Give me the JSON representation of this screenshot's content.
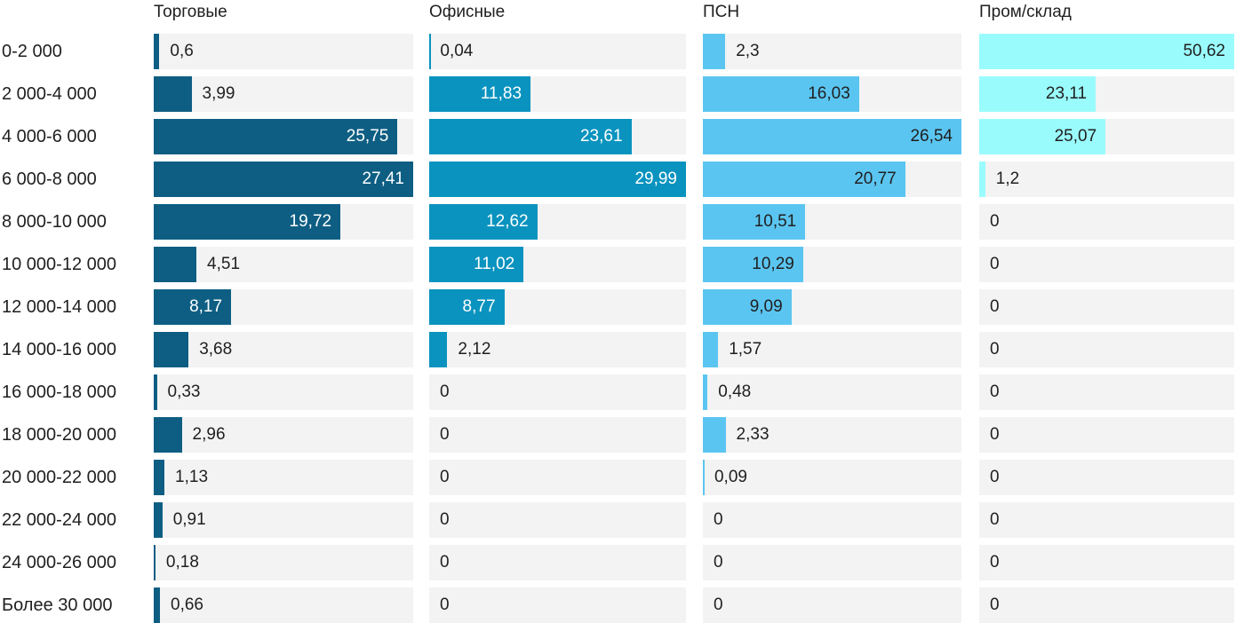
{
  "chart_data": {
    "type": "bar",
    "orientation": "horizontal",
    "title": "",
    "xlabel": "",
    "ylabel": "",
    "grid": false,
    "legend_position": "column-headers-top",
    "scaling": "each column normalized to its own max value (max bar fills full track width)",
    "track_color": "#F3F3F3",
    "text_color": "#1F1F1F",
    "categories": [
      "0-2 000",
      "2 000-4 000",
      "4 000-6 000",
      "6 000-8 000",
      "8 000-10 000",
      "10 000-12 000",
      "12 000-14 000",
      "14 000-16 000",
      "16 000-18 000",
      "18 000-20 000",
      "20 000-22 000",
      "22 000-24 000",
      "24 000-26 000",
      "Более 30 000"
    ],
    "series": [
      {
        "name": "Торговые",
        "color": "#0E5E83",
        "inside_label_color": "#FFFFFF",
        "values": [
          0.6,
          3.99,
          25.75,
          27.41,
          19.72,
          4.51,
          8.17,
          3.68,
          0.33,
          2.96,
          1.13,
          0.91,
          0.18,
          0.66
        ],
        "labels": [
          "0,6",
          "3,99",
          "25,75",
          "27,41",
          "19,72",
          "4,51",
          "8,17",
          "3,68",
          "0,33",
          "2,96",
          "1,13",
          "0,91",
          "0,18",
          "0,66"
        ]
      },
      {
        "name": "Офисные",
        "color": "#0A93BF",
        "inside_label_color": "#FFFFFF",
        "values": [
          0.04,
          11.83,
          23.61,
          29.99,
          12.62,
          11.02,
          8.77,
          2.12,
          0,
          0,
          0,
          0,
          0,
          0
        ],
        "labels": [
          "0,04",
          "11,83",
          "23,61",
          "29,99",
          "12,62",
          "11,02",
          "8,77",
          "2,12",
          "0",
          "0",
          "0",
          "0",
          "0",
          "0"
        ]
      },
      {
        "name": "ПСН",
        "color": "#5BC5F1",
        "inside_label_color": "#1F1F1F",
        "values": [
          2.3,
          16.03,
          26.54,
          20.77,
          10.51,
          10.29,
          9.09,
          1.57,
          0.48,
          2.33,
          0.09,
          0,
          0,
          0
        ],
        "labels": [
          "2,3",
          "16,03",
          "26,54",
          "20,77",
          "10,51",
          "10,29",
          "9,09",
          "1,57",
          "0,48",
          "2,33",
          "0,09",
          "0",
          "0",
          "0"
        ]
      },
      {
        "name": "Пром/склад",
        "color": "#9AFBFC",
        "inside_label_color": "#1F1F1F",
        "values": [
          50.62,
          23.11,
          25.07,
          1.2,
          0,
          0,
          0,
          0,
          0,
          0,
          0,
          0,
          0,
          0
        ],
        "labels": [
          "50,62",
          "23,11",
          "25,07",
          "1,2",
          "0",
          "0",
          "0",
          "0",
          "0",
          "0",
          "0",
          "0",
          "0",
          "0"
        ]
      }
    ]
  }
}
